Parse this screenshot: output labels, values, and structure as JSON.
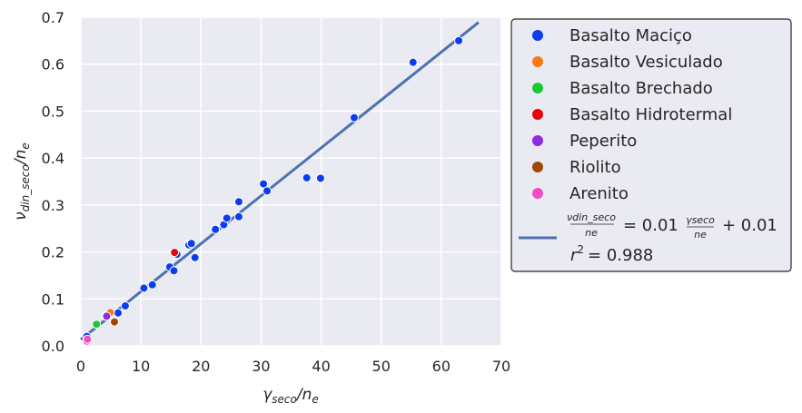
{
  "chart_data": {
    "type": "scatter",
    "xlabel": "γseco/ne",
    "ylabel": "νdin_seco/ne",
    "xlim": [
      0,
      70
    ],
    "ylim": [
      0,
      0.7
    ],
    "x_ticks": [
      "0",
      "10",
      "20",
      "30",
      "40",
      "50",
      "60",
      "70"
    ],
    "y_ticks": [
      "0.0",
      "0.1",
      "0.2",
      "0.3",
      "0.4",
      "0.5",
      "0.6",
      "0.7"
    ],
    "x_tick_values": [
      0,
      10,
      20,
      30,
      40,
      50,
      60,
      70
    ],
    "y_tick_values": [
      0,
      0.1,
      0.2,
      0.3,
      0.4,
      0.5,
      0.6,
      0.7
    ],
    "grid": true,
    "background": "#eaeaf2",
    "legend_position": "outside-right",
    "series": [
      {
        "name": "Basalto Maciço",
        "color": "#0b3df0",
        "points": [
          [
            1,
            0.02
          ],
          [
            4.2,
            0.065
          ],
          [
            6.2,
            0.07
          ],
          [
            7.4,
            0.085
          ],
          [
            10.5,
            0.123
          ],
          [
            11.9,
            0.13
          ],
          [
            14.8,
            0.168
          ],
          [
            15.5,
            0.16
          ],
          [
            16,
            0.195
          ],
          [
            18,
            0.215
          ],
          [
            18.4,
            0.218
          ],
          [
            19,
            0.188
          ],
          [
            22.4,
            0.248
          ],
          [
            23.8,
            0.258
          ],
          [
            24.3,
            0.272
          ],
          [
            26.3,
            0.275
          ],
          [
            26.3,
            0.307
          ],
          [
            30.4,
            0.345
          ],
          [
            31,
            0.33
          ],
          [
            37.6,
            0.358
          ],
          [
            39.9,
            0.357
          ],
          [
            45.5,
            0.486
          ],
          [
            55.3,
            0.604
          ],
          [
            62.9,
            0.65
          ]
        ]
      },
      {
        "name": "Basalto Vesiculado",
        "color": "#f77b11",
        "points": [
          [
            4.9,
            0.071
          ],
          [
            4.2,
            0.063
          ]
        ]
      },
      {
        "name": "Basalto Brechado",
        "color": "#1ac938",
        "points": [
          [
            2.6,
            0.046
          ]
        ]
      },
      {
        "name": "Basalto Hidrotermal",
        "color": "#e8000b",
        "points": [
          [
            15.6,
            0.199
          ]
        ]
      },
      {
        "name": "Peperito",
        "color": "#8b2be2",
        "points": [
          [
            4.3,
            0.063
          ]
        ]
      },
      {
        "name": "Riolito",
        "color": "#9f4800",
        "points": [
          [
            5.6,
            0.051
          ]
        ]
      },
      {
        "name": "Arenito",
        "color": "#f14cc1",
        "points": [
          [
            1,
            0.01
          ],
          [
            1.1,
            0.014
          ]
        ]
      }
    ],
    "fit_line": {
      "x": [
        0,
        66.2
      ],
      "y": [
        0.0135,
        0.689
      ],
      "color": "#4c72b0",
      "equation": "νdin_seco/ne = 0.01 γseco/ne + 0.01",
      "r2": "r2 = 0.988"
    }
  },
  "legend": {
    "fit_equation_prefix": "= 0.01",
    "fit_equation_suffix": "+ 0.01",
    "r2_label": "r",
    "r2_exp": "2",
    "r2_value": "= 0.988",
    "frac1_num": "νdin_seco",
    "frac1_den": "ne",
    "frac2_num": "γseco",
    "frac2_den": "ne"
  }
}
